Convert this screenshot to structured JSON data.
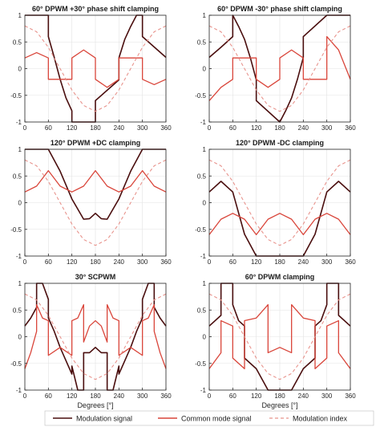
{
  "figure": {
    "legend": {
      "entries": [
        {
          "label": "Modulation signal",
          "color": "#4a0e0e",
          "style": "solid"
        },
        {
          "label": "Common mode signal",
          "color": "#d9453a",
          "style": "solid"
        },
        {
          "label": "Modulation index",
          "color": "#e8938c",
          "style": "dashed"
        }
      ]
    },
    "x_axis_label": "Degrees [°]"
  },
  "chart_data": [
    {
      "type": "line",
      "title": "60° DPWM +30° phase shift clamping",
      "xlim": [
        0,
        360
      ],
      "ylim": [
        -1,
        1
      ],
      "xticks": [
        0,
        60,
        120,
        180,
        240,
        300,
        360
      ],
      "yticks": [
        -1,
        -0.5,
        0,
        0.5,
        1
      ],
      "xlabel": "",
      "grid": true,
      "series": [
        {
          "name": "Modulation signal",
          "x": [
            0,
            60,
            60,
            75,
            90,
            105,
            120,
            120,
            180,
            180,
            240,
            240,
            255,
            270,
            285,
            300,
            300,
            360
          ],
          "y": [
            1,
            1,
            0.6,
            0.21,
            -0.2,
            -0.55,
            -0.79,
            -1,
            -1,
            -0.6,
            -0.21,
            0.2,
            0.55,
            0.79,
            1,
            1,
            0.6,
            0.21
          ]
        },
        {
          "name": "Common mode signal",
          "x": [
            0,
            30,
            60,
            60,
            90,
            120,
            120,
            150,
            180,
            180,
            210,
            240,
            240,
            270,
            300,
            300,
            330,
            360
          ],
          "y": [
            0.2,
            0.3,
            0.2,
            -0.2,
            -0.2,
            -0.2,
            0.2,
            0.35,
            0.2,
            -0.2,
            -0.35,
            -0.2,
            0.2,
            0.2,
            0.2,
            -0.2,
            -0.3,
            -0.2
          ]
        },
        {
          "name": "Modulation index",
          "x": [
            0,
            30,
            60,
            90,
            120,
            150,
            180,
            210,
            240,
            270,
            300,
            330,
            360
          ],
          "y": [
            0.8,
            0.69,
            0.4,
            0,
            -0.4,
            -0.69,
            -0.8,
            -0.69,
            -0.4,
            0,
            0.4,
            0.69,
            0.8
          ]
        }
      ]
    },
    {
      "type": "line",
      "title": "60° DPWM -30° phase shift clamping",
      "xlim": [
        0,
        360
      ],
      "ylim": [
        -1,
        1
      ],
      "xticks": [
        0,
        60,
        120,
        180,
        240,
        300,
        360
      ],
      "yticks": [
        -1,
        -0.5,
        0,
        0.5,
        1
      ],
      "xlabel": "",
      "grid": true,
      "series": [
        {
          "name": "Modulation signal",
          "x": [
            0,
            30,
            60,
            60,
            75,
            90,
            105,
            120,
            120,
            180,
            180,
            195,
            210,
            225,
            240,
            240,
            300,
            300,
            360
          ],
          "y": [
            0.21,
            0.4,
            0.6,
            1,
            0.79,
            0.55,
            0.2,
            -0.21,
            -0.6,
            -1,
            -1,
            -0.79,
            -0.55,
            -0.2,
            0.21,
            0.6,
            1,
            1,
            1
          ]
        },
        {
          "name": "Common mode signal",
          "x": [
            0,
            30,
            60,
            60,
            90,
            120,
            120,
            150,
            180,
            180,
            210,
            240,
            240,
            270,
            300,
            300,
            330,
            360
          ],
          "y": [
            -0.6,
            -0.35,
            -0.2,
            0.2,
            0.2,
            0.2,
            -0.2,
            -0.35,
            -0.2,
            0.2,
            0.35,
            0.2,
            -0.2,
            -0.2,
            -0.2,
            0.6,
            0.35,
            -0.2
          ]
        },
        {
          "name": "Modulation index",
          "x": [
            0,
            30,
            60,
            90,
            120,
            150,
            180,
            210,
            240,
            270,
            300,
            330,
            360
          ],
          "y": [
            0.8,
            0.69,
            0.4,
            0,
            -0.4,
            -0.69,
            -0.8,
            -0.69,
            -0.4,
            0,
            0.4,
            0.69,
            0.8
          ]
        }
      ]
    },
    {
      "type": "line",
      "title": "120° DPWM +DC clamping",
      "xlim": [
        0,
        360
      ],
      "ylim": [
        -1,
        1
      ],
      "xticks": [
        0,
        60,
        120,
        180,
        240,
        300,
        360
      ],
      "yticks": [
        -1,
        -0.5,
        0,
        0.5,
        1
      ],
      "xlabel": "",
      "grid": true,
      "series": [
        {
          "name": "Modulation signal",
          "x": [
            0,
            60,
            90,
            120,
            150,
            165,
            180,
            195,
            210,
            240,
            270,
            300,
            360
          ],
          "y": [
            1,
            1,
            0.59,
            0.07,
            -0.31,
            -0.3,
            -0.2,
            -0.3,
            -0.31,
            0.07,
            0.59,
            1,
            1
          ]
        },
        {
          "name": "Common mode signal",
          "x": [
            0,
            30,
            60,
            90,
            120,
            150,
            180,
            210,
            240,
            270,
            300,
            330,
            360
          ],
          "y": [
            0.2,
            0.31,
            0.6,
            0.31,
            0.2,
            0.31,
            0.6,
            0.31,
            0.2,
            0.31,
            0.6,
            0.31,
            0.2
          ]
        },
        {
          "name": "Modulation index",
          "x": [
            0,
            30,
            60,
            90,
            120,
            150,
            180,
            210,
            240,
            270,
            300,
            330,
            360
          ],
          "y": [
            0.8,
            0.69,
            0.4,
            0,
            -0.4,
            -0.69,
            -0.8,
            -0.69,
            -0.4,
            0,
            0.4,
            0.69,
            0.8
          ]
        }
      ]
    },
    {
      "type": "line",
      "title": "120° DPWM -DC clamping",
      "xlim": [
        0,
        360
      ],
      "ylim": [
        -1,
        1
      ],
      "xticks": [
        0,
        60,
        120,
        180,
        240,
        300,
        360
      ],
      "yticks": [
        -1,
        -0.5,
        0,
        0.5,
        1
      ],
      "xlabel": "",
      "grid": true,
      "series": [
        {
          "name": "Modulation signal",
          "x": [
            0,
            30,
            60,
            90,
            120,
            180,
            240,
            270,
            300,
            330,
            360
          ],
          "y": [
            0.2,
            0.4,
            0.2,
            -0.59,
            -1,
            -1,
            -1,
            -0.59,
            0.2,
            0.4,
            0.2
          ]
        },
        {
          "name": "Common mode signal",
          "x": [
            0,
            30,
            60,
            90,
            120,
            150,
            180,
            210,
            240,
            270,
            300,
            330,
            360
          ],
          "y": [
            -0.6,
            -0.31,
            -0.2,
            -0.31,
            -0.6,
            -0.31,
            -0.2,
            -0.31,
            -0.6,
            -0.31,
            -0.2,
            -0.31,
            -0.6
          ]
        },
        {
          "name": "Modulation index",
          "x": [
            0,
            30,
            60,
            90,
            120,
            150,
            180,
            210,
            240,
            270,
            300,
            330,
            360
          ],
          "y": [
            0.8,
            0.69,
            0.4,
            0,
            -0.4,
            -0.69,
            -0.8,
            -0.69,
            -0.4,
            0,
            0.4,
            0.69,
            0.8
          ]
        }
      ]
    },
    {
      "type": "line",
      "title": "30° SCPWM",
      "xlim": [
        0,
        360
      ],
      "ylim": [
        -1,
        1
      ],
      "xticks": [
        0,
        60,
        120,
        180,
        240,
        300,
        360
      ],
      "yticks": [
        -1,
        -0.5,
        0,
        0.5,
        1
      ],
      "xlabel": "Degrees [°]",
      "grid": true,
      "series": [
        {
          "name": "Modulation signal",
          "x": [
            0,
            15,
            30,
            30,
            45,
            60,
            60,
            75,
            90,
            105,
            120,
            120,
            135,
            150,
            150,
            165,
            180,
            195,
            210,
            210,
            225,
            240,
            240,
            255,
            270,
            285,
            300,
            300,
            315,
            330,
            330,
            345,
            360
          ],
          "y": [
            0.2,
            0.35,
            0.55,
            1,
            1,
            0.7,
            0.35,
            0.1,
            -0.2,
            -0.45,
            -0.7,
            -0.55,
            -1,
            -1,
            -0.3,
            -0.3,
            -0.2,
            -0.3,
            -0.3,
            -1,
            -1,
            -0.55,
            -0.7,
            -0.45,
            -0.2,
            0.1,
            0.35,
            0.7,
            1,
            1,
            0.55,
            0.35,
            0.2
          ]
        },
        {
          "name": "Common mode signal",
          "x": [
            0,
            15,
            30,
            30,
            45,
            60,
            60,
            90,
            120,
            120,
            135,
            150,
            150,
            165,
            180,
            195,
            210,
            210,
            225,
            240,
            240,
            270,
            300,
            300,
            315,
            330,
            330,
            345,
            360
          ],
          "y": [
            -0.6,
            -0.3,
            0.1,
            0.6,
            0.35,
            0.3,
            -0.35,
            -0.2,
            -0.35,
            0.3,
            0.35,
            0.6,
            -0.1,
            0.2,
            0.3,
            0.2,
            -0.1,
            0.6,
            0.35,
            0.3,
            -0.35,
            -0.2,
            -0.35,
            0.3,
            0.35,
            0.6,
            0.1,
            -0.3,
            -0.6
          ]
        },
        {
          "name": "Modulation index",
          "x": [
            0,
            30,
            60,
            90,
            120,
            150,
            180,
            210,
            240,
            270,
            300,
            330,
            360
          ],
          "y": [
            0.8,
            0.69,
            0.4,
            0,
            -0.4,
            -0.69,
            -0.8,
            -0.69,
            -0.4,
            0,
            0.4,
            0.69,
            0.8
          ]
        }
      ]
    },
    {
      "type": "line",
      "title": "60° DPWM clamping",
      "xlim": [
        0,
        360
      ],
      "ylim": [
        -1,
        1
      ],
      "xticks": [
        0,
        60,
        120,
        180,
        240,
        300,
        360
      ],
      "yticks": [
        -1,
        -0.5,
        0,
        0.5,
        1
      ],
      "xlabel": "Degrees [°]",
      "grid": true,
      "series": [
        {
          "name": "Modulation signal",
          "x": [
            0,
            30,
            30,
            60,
            60,
            75,
            90,
            90,
            105,
            120,
            150,
            150,
            210,
            210,
            240,
            255,
            270,
            270,
            285,
            300,
            300,
            330,
            330,
            360
          ],
          "y": [
            0.2,
            0.4,
            1,
            1,
            0.6,
            0.3,
            0.2,
            -0.4,
            -0.5,
            -0.6,
            -1,
            -1,
            -1,
            -1,
            -0.6,
            -0.5,
            -0.4,
            0.2,
            0.3,
            0.6,
            1,
            1,
            0.4,
            0.2
          ]
        },
        {
          "name": "Common mode signal",
          "x": [
            0,
            30,
            30,
            60,
            60,
            90,
            90,
            120,
            150,
            150,
            180,
            210,
            210,
            240,
            270,
            270,
            300,
            300,
            330,
            330,
            360
          ],
          "y": [
            -0.6,
            -0.3,
            0.3,
            0.2,
            -0.4,
            -0.6,
            0.3,
            0.35,
            0.6,
            -0.3,
            -0.2,
            -0.3,
            0.6,
            0.35,
            0.3,
            -0.6,
            -0.4,
            0.2,
            0.3,
            -0.3,
            -0.6
          ]
        },
        {
          "name": "Modulation index",
          "x": [
            0,
            30,
            60,
            90,
            120,
            150,
            180,
            210,
            240,
            270,
            300,
            330,
            360
          ],
          "y": [
            0.8,
            0.69,
            0.4,
            0,
            -0.4,
            -0.69,
            -0.8,
            -0.69,
            -0.4,
            0,
            0.4,
            0.69,
            0.8
          ]
        }
      ]
    }
  ]
}
